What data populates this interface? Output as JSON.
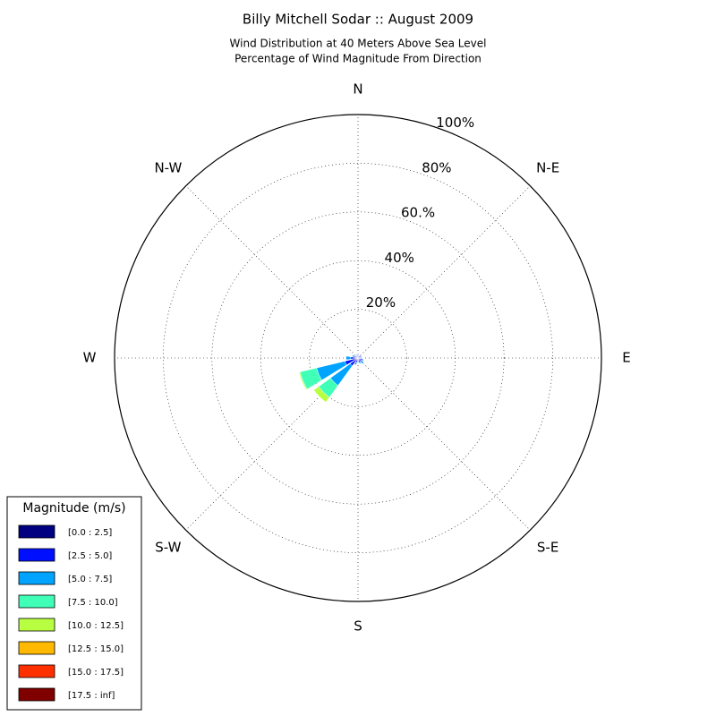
{
  "chart_data": {
    "type": "windrose",
    "title": "Billy Mitchell Sodar :: August 2009",
    "subtitle": [
      "Wind Distribution at 40 Meters Above Sea Level",
      "Percentage of Wind Magnitude From Direction"
    ],
    "categories": [
      "N",
      null,
      "N-E",
      null,
      "E",
      null,
      "S-E",
      null,
      "S",
      null,
      "S-W",
      null,
      "W",
      null,
      "N-W",
      null
    ],
    "rlim": [
      0,
      100
    ],
    "rticks": [
      {
        "value": 20,
        "label": "20%"
      },
      {
        "value": 40,
        "label": "40%"
      },
      {
        "value": 60,
        "label": "60.%"
      },
      {
        "value": 80,
        "label": "80%"
      },
      {
        "value": 100,
        "label": "100%"
      }
    ],
    "grid": true,
    "legend_title": "Magnitude (m/s)",
    "legend_position": "lower left",
    "series": [
      {
        "name": "[0.0 : 2.5]",
        "color": "#000080",
        "values": [
          0.5,
          0.5,
          0.5,
          0.5,
          0.5,
          0.5,
          0.5,
          0.5,
          0.5,
          0.5,
          1,
          1.5,
          1,
          0.5,
          0.5,
          0.5
        ]
      },
      {
        "name": "[2.5 : 5.0]",
        "color": "#0010ff",
        "values": [
          1,
          0.5,
          1,
          1,
          1,
          1.5,
          1.5,
          1.5,
          1,
          1.5,
          3,
          4,
          2,
          1,
          0.5,
          0.5
        ]
      },
      {
        "name": "[5.0 : 7.5]",
        "color": "#00a4ff",
        "values": [
          0,
          0,
          0,
          0,
          0,
          0.5,
          1,
          0.5,
          0.5,
          1,
          10,
          12,
          2,
          1,
          0,
          0.5
        ]
      },
      {
        "name": "[7.5 : 10.0]",
        "color": "#40ffb7",
        "values": [
          0,
          0,
          0,
          0,
          0,
          0,
          0,
          0,
          0,
          0,
          6,
          7,
          0,
          0,
          0,
          0
        ]
      },
      {
        "name": "[10.0 : 12.5]",
        "color": "#b7ff40",
        "values": [
          0,
          0,
          0,
          0,
          0,
          0,
          0,
          0,
          0,
          0,
          2.5,
          0.5,
          0,
          0,
          0,
          0
        ]
      },
      {
        "name": "[12.5 : 15.0]",
        "color": "#ffb900",
        "values": [
          0,
          0,
          0,
          0,
          0,
          0,
          0,
          0,
          0,
          0,
          0,
          0,
          0,
          0,
          0,
          0
        ]
      },
      {
        "name": "[15.0 : 17.5]",
        "color": "#ff3000",
        "values": [
          0,
          0,
          0,
          0,
          0,
          0,
          0,
          0,
          0,
          0,
          0,
          0,
          0,
          0,
          0,
          0
        ]
      },
      {
        "name": "[17.5 : inf]",
        "color": "#800000",
        "values": [
          0,
          0,
          0,
          0,
          0,
          0,
          0,
          0,
          0,
          0,
          0,
          0,
          0,
          0,
          0,
          0
        ]
      }
    ]
  }
}
